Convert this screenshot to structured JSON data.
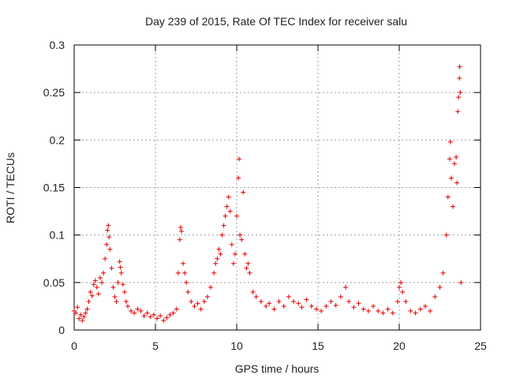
{
  "chart_data": {
    "type": "scatter",
    "title": "Day 239 of 2015, Rate Of TEC Index for receiver salu",
    "xlabel": "GPS time / hours",
    "ylabel": "ROTI / TECUs",
    "xlim": [
      0,
      25
    ],
    "ylim": [
      0,
      0.3
    ],
    "x_ticks": [
      0,
      5,
      10,
      15,
      20,
      25
    ],
    "x_tick_labels": [
      "0",
      "5",
      "10",
      "15",
      "20",
      "25"
    ],
    "y_ticks": [
      0,
      0.05,
      0.1,
      0.15,
      0.2,
      0.25,
      0.3
    ],
    "y_tick_labels": [
      "0",
      "0.05",
      "0.1",
      "0.15",
      "0.2",
      "0.25",
      "0.3"
    ],
    "grid": true,
    "marker": "+",
    "marker_color": "#e00000",
    "series": [
      {
        "name": "ROTI",
        "points": [
          [
            0.0,
            0.02
          ],
          [
            0.1,
            0.018
          ],
          [
            0.2,
            0.024
          ],
          [
            0.3,
            0.012
          ],
          [
            0.4,
            0.016
          ],
          [
            0.5,
            0.01
          ],
          [
            0.6,
            0.014
          ],
          [
            0.7,
            0.018
          ],
          [
            0.8,
            0.022
          ],
          [
            0.9,
            0.03
          ],
          [
            1.0,
            0.04
          ],
          [
            1.1,
            0.036
          ],
          [
            1.2,
            0.048
          ],
          [
            1.3,
            0.052
          ],
          [
            1.4,
            0.045
          ],
          [
            1.5,
            0.038
          ],
          [
            1.6,
            0.055
          ],
          [
            1.7,
            0.05
          ],
          [
            1.8,
            0.06
          ],
          [
            1.9,
            0.075
          ],
          [
            2.0,
            0.09
          ],
          [
            2.05,
            0.105
          ],
          [
            2.1,
            0.11
          ],
          [
            2.15,
            0.098
          ],
          [
            2.2,
            0.085
          ],
          [
            2.3,
            0.065
          ],
          [
            2.4,
            0.045
          ],
          [
            2.5,
            0.035
          ],
          [
            2.6,
            0.03
          ],
          [
            2.7,
            0.05
          ],
          [
            2.8,
            0.072
          ],
          [
            2.85,
            0.066
          ],
          [
            2.9,
            0.06
          ],
          [
            3.0,
            0.048
          ],
          [
            3.1,
            0.04
          ],
          [
            3.2,
            0.03
          ],
          [
            3.3,
            0.025
          ],
          [
            3.5,
            0.02
          ],
          [
            3.7,
            0.018
          ],
          [
            3.9,
            0.022
          ],
          [
            4.1,
            0.02
          ],
          [
            4.3,
            0.015
          ],
          [
            4.5,
            0.018
          ],
          [
            4.7,
            0.014
          ],
          [
            4.9,
            0.016
          ],
          [
            5.1,
            0.012
          ],
          [
            5.3,
            0.015
          ],
          [
            5.5,
            0.01
          ],
          [
            5.7,
            0.013
          ],
          [
            5.9,
            0.016
          ],
          [
            6.1,
            0.018
          ],
          [
            6.3,
            0.022
          ],
          [
            6.4,
            0.06
          ],
          [
            6.5,
            0.095
          ],
          [
            6.55,
            0.108
          ],
          [
            6.6,
            0.104
          ],
          [
            6.7,
            0.07
          ],
          [
            6.8,
            0.06
          ],
          [
            6.9,
            0.05
          ],
          [
            7.0,
            0.04
          ],
          [
            7.2,
            0.03
          ],
          [
            7.4,
            0.025
          ],
          [
            7.6,
            0.028
          ],
          [
            7.8,
            0.022
          ],
          [
            8.0,
            0.03
          ],
          [
            8.2,
            0.035
          ],
          [
            8.4,
            0.045
          ],
          [
            8.6,
            0.06
          ],
          [
            8.7,
            0.07
          ],
          [
            8.8,
            0.075
          ],
          [
            8.9,
            0.085
          ],
          [
            9.0,
            0.08
          ],
          [
            9.1,
            0.1
          ],
          [
            9.2,
            0.11
          ],
          [
            9.3,
            0.12
          ],
          [
            9.4,
            0.13
          ],
          [
            9.5,
            0.14
          ],
          [
            9.6,
            0.125
          ],
          [
            9.7,
            0.09
          ],
          [
            9.8,
            0.07
          ],
          [
            9.9,
            0.08
          ],
          [
            10.0,
            0.12
          ],
          [
            10.1,
            0.16
          ],
          [
            10.15,
            0.18
          ],
          [
            10.2,
            0.1
          ],
          [
            10.3,
            0.095
          ],
          [
            10.4,
            0.145
          ],
          [
            10.5,
            0.08
          ],
          [
            10.6,
            0.065
          ],
          [
            10.7,
            0.07
          ],
          [
            10.8,
            0.06
          ],
          [
            11.0,
            0.04
          ],
          [
            11.2,
            0.035
          ],
          [
            11.5,
            0.03
          ],
          [
            11.8,
            0.025
          ],
          [
            12.0,
            0.028
          ],
          [
            12.3,
            0.022
          ],
          [
            12.6,
            0.03
          ],
          [
            12.9,
            0.025
          ],
          [
            13.2,
            0.035
          ],
          [
            13.5,
            0.03
          ],
          [
            13.8,
            0.028
          ],
          [
            14.0,
            0.024
          ],
          [
            14.3,
            0.032
          ],
          [
            14.6,
            0.025
          ],
          [
            14.9,
            0.022
          ],
          [
            15.2,
            0.02
          ],
          [
            15.5,
            0.025
          ],
          [
            15.8,
            0.03
          ],
          [
            16.1,
            0.026
          ],
          [
            16.4,
            0.035
          ],
          [
            16.7,
            0.045
          ],
          [
            16.9,
            0.03
          ],
          [
            17.2,
            0.024
          ],
          [
            17.5,
            0.028
          ],
          [
            17.8,
            0.022
          ],
          [
            18.1,
            0.02
          ],
          [
            18.4,
            0.025
          ],
          [
            18.7,
            0.02
          ],
          [
            19.0,
            0.018
          ],
          [
            19.3,
            0.022
          ],
          [
            19.6,
            0.018
          ],
          [
            19.9,
            0.03
          ],
          [
            20.0,
            0.045
          ],
          [
            20.1,
            0.05
          ],
          [
            20.2,
            0.04
          ],
          [
            20.4,
            0.03
          ],
          [
            20.7,
            0.02
          ],
          [
            21.0,
            0.018
          ],
          [
            21.3,
            0.022
          ],
          [
            21.6,
            0.025
          ],
          [
            21.9,
            0.02
          ],
          [
            22.2,
            0.035
          ],
          [
            22.5,
            0.045
          ],
          [
            22.7,
            0.06
          ],
          [
            22.9,
            0.1
          ],
          [
            23.0,
            0.14
          ],
          [
            23.1,
            0.18
          ],
          [
            23.15,
            0.198
          ],
          [
            23.2,
            0.16
          ],
          [
            23.3,
            0.13
          ],
          [
            23.4,
            0.175
          ],
          [
            23.5,
            0.182
          ],
          [
            23.55,
            0.155
          ],
          [
            23.6,
            0.23
          ],
          [
            23.65,
            0.245
          ],
          [
            23.7,
            0.265
          ],
          [
            23.72,
            0.277
          ],
          [
            23.75,
            0.25
          ],
          [
            23.8,
            0.05
          ]
        ]
      }
    ]
  }
}
